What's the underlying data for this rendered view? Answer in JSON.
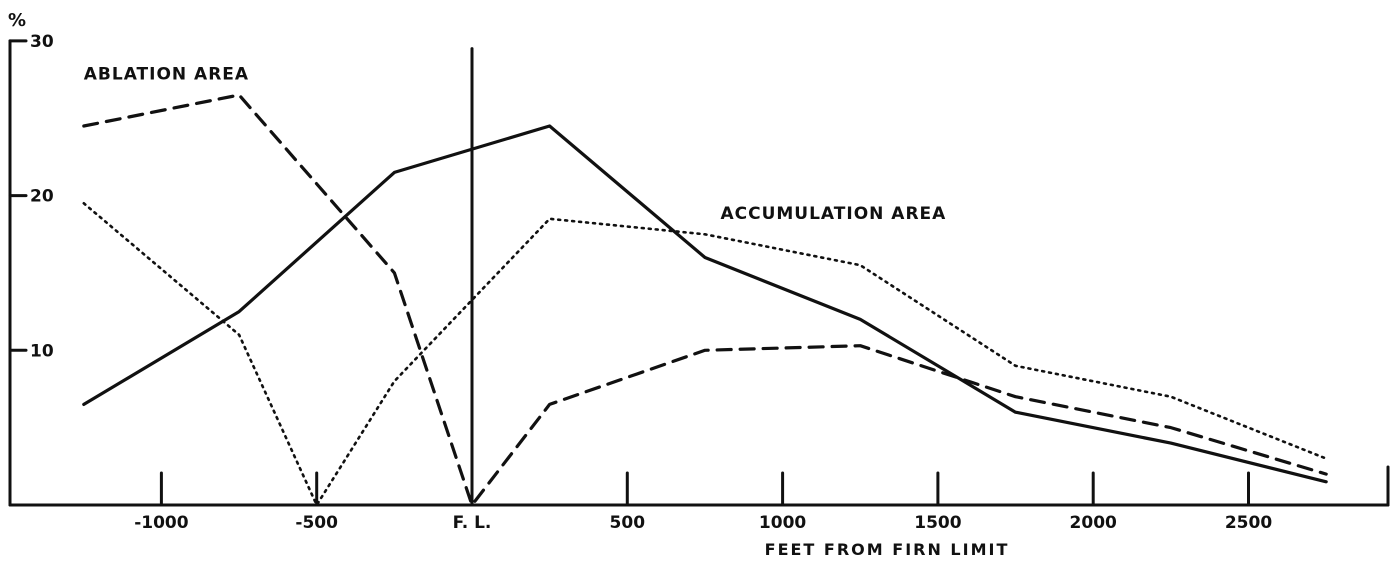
{
  "chart_data": {
    "type": "line",
    "unit_label": "%",
    "xlabel": "FEET FROM FIRN LIMIT",
    "ylabel": "",
    "xlim": [
      -1500,
      3000
    ],
    "ylim": [
      0,
      30
    ],
    "x_ticks": [
      {
        "value": -1000,
        "label": "-1000"
      },
      {
        "value": -500,
        "label": "-500"
      },
      {
        "value": 0,
        "label": "F. L."
      },
      {
        "value": 500,
        "label": "500"
      },
      {
        "value": 1000,
        "label": "1000"
      },
      {
        "value": 1500,
        "label": "1500"
      },
      {
        "value": 2000,
        "label": "2000"
      },
      {
        "value": 2500,
        "label": "2500"
      }
    ],
    "y_ticks": [
      {
        "value": 10,
        "label": "10"
      },
      {
        "value": 20,
        "label": "20"
      },
      {
        "value": 30,
        "label": "30"
      }
    ],
    "annotations": [
      {
        "text": "ABLATION AREA",
        "x": -1250,
        "y": 27.5
      },
      {
        "text": "ACCUMULATION AREA",
        "x": 800,
        "y": 18.5
      }
    ],
    "firn_limit_line": {
      "x": 0,
      "y_top": 29.5
    },
    "series": [
      {
        "style": "solid",
        "x": [
          -1250,
          -750,
          -250,
          250,
          750,
          1250,
          1750,
          2250,
          2750
        ],
        "y": [
          6.5,
          12.5,
          21.5,
          24.5,
          16,
          12,
          6,
          4,
          1.5
        ]
      },
      {
        "style": "dashed",
        "x": [
          -1250,
          -750,
          -250,
          0,
          250,
          750,
          1250,
          1750,
          2250,
          2750
        ],
        "y": [
          24.5,
          26.5,
          15,
          0,
          6.5,
          10,
          10.3,
          7,
          5,
          2
        ]
      },
      {
        "style": "dotted",
        "x": [
          -1250,
          -750,
          -500,
          -250,
          250,
          750,
          1250,
          1750,
          2250,
          2750
        ],
        "y": [
          19.5,
          11,
          0,
          8,
          18.5,
          17.5,
          15.5,
          9,
          7,
          3
        ]
      }
    ],
    "grid": false,
    "legend": "none"
  }
}
